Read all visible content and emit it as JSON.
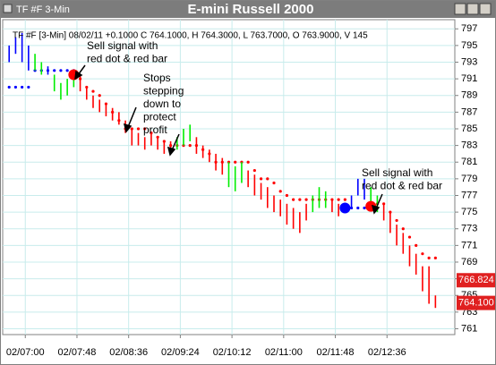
{
  "chart_data": {
    "type": "price-bars",
    "window_title": "TF #F 3-Min",
    "title": "E-mini Russell 2000",
    "info": "TF #F [3-Min] 08/02/11 +0.1000 C 764.1000, H 764.3000, L 763.7000, O 763.9000, V 145",
    "xlim": [
      -2,
      138
    ],
    "ylim": [
      760.3,
      798.1
    ],
    "grid": true,
    "grid_color": "#c8ecec",
    "xticks": [
      {
        "value": 5,
        "label": "02/07:00"
      },
      {
        "value": 21,
        "label": "02/07:48"
      },
      {
        "value": 37,
        "label": "02/08:36"
      },
      {
        "value": 53,
        "label": "02/09:24"
      },
      {
        "value": 69,
        "label": "02/10:12"
      },
      {
        "value": 85,
        "label": "02/11:00"
      },
      {
        "value": 101,
        "label": "02/11:48"
      },
      {
        "value": 117,
        "label": "02/12:36"
      }
    ],
    "yticks": [
      761,
      763,
      765,
      767,
      769,
      771,
      773,
      775,
      777,
      779,
      781,
      783,
      785,
      787,
      789,
      791,
      793,
      795,
      797
    ],
    "series": [
      {
        "color": "#0000ff",
        "x": [
          0,
          2,
          4,
          6,
          12,
          106,
          108,
          110
        ],
        "high": [
          795,
          796,
          796.5,
          795,
          792.5,
          777,
          779,
          779
        ],
        "low": [
          793,
          794,
          793,
          792,
          791.5,
          775.5,
          777,
          776.5
        ]
      },
      {
        "color": "#00ee00",
        "x": [
          8,
          10,
          14,
          16,
          18,
          20,
          52,
          54,
          56,
          68,
          70,
          72,
          94,
          96,
          98,
          112,
          114
        ],
        "high": [
          794,
          793,
          791.5,
          790.5,
          791,
          791.5,
          784,
          785,
          785.5,
          781,
          780.5,
          781,
          777,
          778,
          777.5,
          778,
          777
        ],
        "low": [
          792,
          791.5,
          789.5,
          788.5,
          789,
          790,
          782.5,
          783,
          783.5,
          778,
          777.5,
          778.5,
          775,
          775.5,
          775.5,
          776,
          775
        ]
      },
      {
        "color": "#ff0000",
        "x": [
          22,
          24,
          26,
          28,
          30,
          32,
          34,
          36,
          38,
          40,
          42,
          44,
          46,
          48,
          50,
          58,
          60,
          62,
          64,
          66,
          74,
          76,
          78,
          80,
          82,
          84,
          86,
          88,
          90,
          92,
          100,
          102,
          104,
          116,
          118,
          120,
          122,
          124,
          126,
          128,
          130,
          132
        ],
        "high": [
          791.5,
          790,
          789,
          788.5,
          788,
          787.5,
          787,
          786,
          785,
          784.5,
          784,
          784.5,
          784,
          783.5,
          783.5,
          784,
          783,
          782.5,
          782,
          781.5,
          780,
          779.5,
          778.5,
          778,
          777,
          776.5,
          776,
          775.5,
          775,
          776,
          776.5,
          776,
          776,
          776,
          775,
          773.5,
          772.5,
          771,
          770,
          768.5,
          768.5,
          765
        ],
        "low": [
          789.5,
          788.5,
          787.5,
          787,
          786.5,
          786,
          785.5,
          784.5,
          783,
          783,
          782.5,
          783,
          782.5,
          782,
          782,
          782,
          781.5,
          781,
          780,
          779.5,
          778,
          777,
          776.5,
          775.5,
          775,
          774.5,
          773.5,
          773,
          772.5,
          774,
          775,
          774.5,
          775,
          774,
          772.5,
          771,
          770,
          768.5,
          767.5,
          765.5,
          764,
          763.5
        ]
      }
    ],
    "stops": [
      {
        "color": "#ff0000",
        "x": [
          22,
          24,
          26,
          28,
          30,
          32,
          34,
          36,
          38,
          40,
          42,
          44,
          46,
          48,
          50,
          52,
          54,
          56,
          58,
          60,
          62,
          64,
          66,
          68,
          70,
          72,
          74,
          76,
          78,
          80,
          82,
          84,
          86,
          88,
          90,
          92,
          94,
          96,
          98,
          100,
          102,
          104,
          112,
          114,
          116,
          118,
          120,
          122,
          124,
          126,
          128,
          130,
          132
        ],
        "values": [
          791,
          790,
          789.5,
          789,
          788,
          787,
          786,
          785,
          785,
          785,
          785,
          784.5,
          784,
          783.5,
          783,
          783,
          783,
          783,
          783,
          782.5,
          782,
          781,
          781,
          781,
          781,
          781,
          781,
          780,
          779,
          779,
          778.5,
          777.5,
          777,
          776.5,
          776.5,
          776.5,
          776.5,
          776.5,
          776.5,
          776.5,
          776.5,
          776.5,
          776,
          776,
          776,
          775,
          774,
          773,
          772,
          771,
          770,
          769.5,
          769.5
        ]
      },
      {
        "color": "#0000ff",
        "x": [
          0,
          2,
          4,
          6,
          8,
          10,
          12,
          14,
          16,
          18,
          20,
          106,
          108,
          110
        ],
        "values": [
          790,
          790,
          790,
          790,
          792,
          792,
          792,
          792,
          792,
          792,
          792,
          775.5,
          775.5,
          775.5
        ]
      }
    ],
    "signals": [
      {
        "color": "#ff0000",
        "x": 20,
        "value": 791.5
      },
      {
        "color": "#0000ff",
        "x": 104,
        "value": 775.5
      },
      {
        "color": "#ff0000",
        "x": 112,
        "value": 775.7
      }
    ],
    "price_tags": [
      {
        "value": 766.824,
        "label": "766.824",
        "color": "#e02020"
      },
      {
        "value": 764.1,
        "label": "764.100",
        "color": "#e02020"
      }
    ],
    "annotations": [
      {
        "lines": [
          "Sell signal with",
          "red dot & red bar"
        ]
      },
      {
        "lines": [
          "Stops",
          "stepping",
          "down to",
          "protect",
          "profit"
        ]
      },
      {
        "lines": [
          "Sell signal with",
          "red dot & red bar"
        ]
      }
    ]
  }
}
